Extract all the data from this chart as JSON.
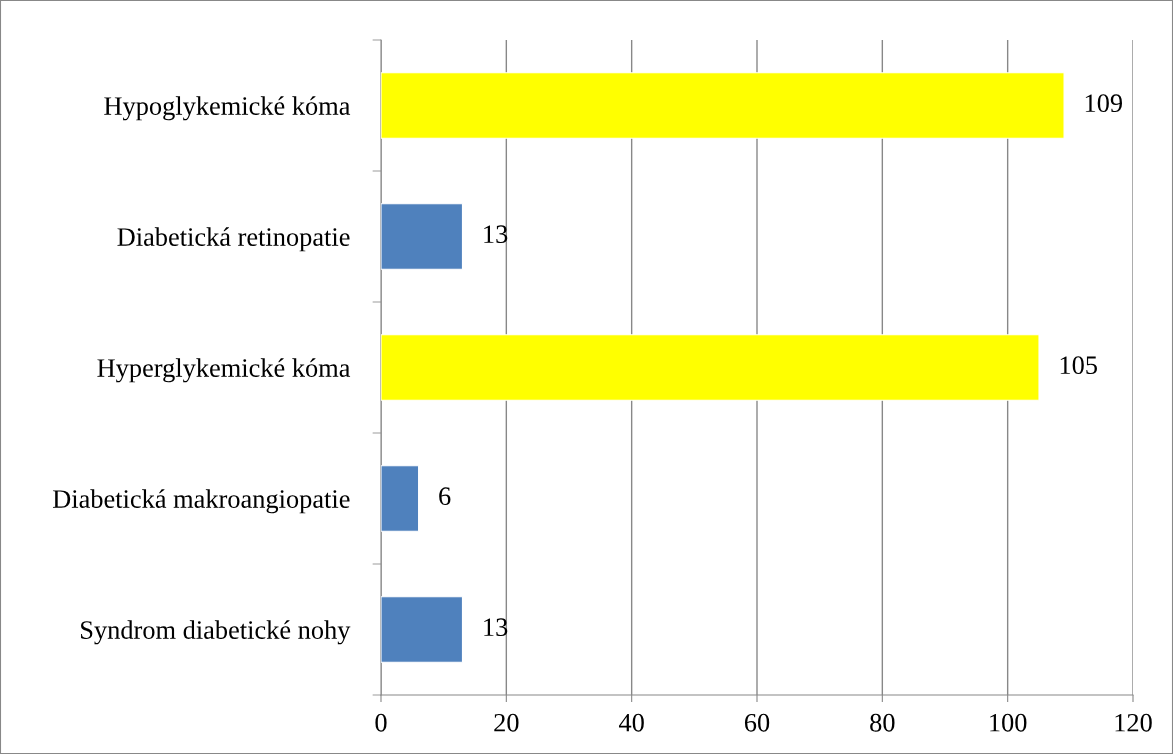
{
  "chart_data": {
    "type": "bar",
    "orientation": "horizontal",
    "categories": [
      "Hypoglykemické kóma",
      "Diabetická retinopatie",
      "Hyperglykemické kóma",
      "Diabetická makroangiopatie",
      "Syndrom diabetické nohy"
    ],
    "values": [
      109,
      13,
      105,
      6,
      13
    ],
    "colors": [
      "#ffff00",
      "#4f81bd",
      "#ffff00",
      "#4f81bd",
      "#4f81bd"
    ],
    "xlim": [
      0,
      120
    ],
    "xticks": [
      0,
      20,
      40,
      60,
      80,
      100,
      120
    ],
    "grid": "x",
    "data_labels": true
  }
}
